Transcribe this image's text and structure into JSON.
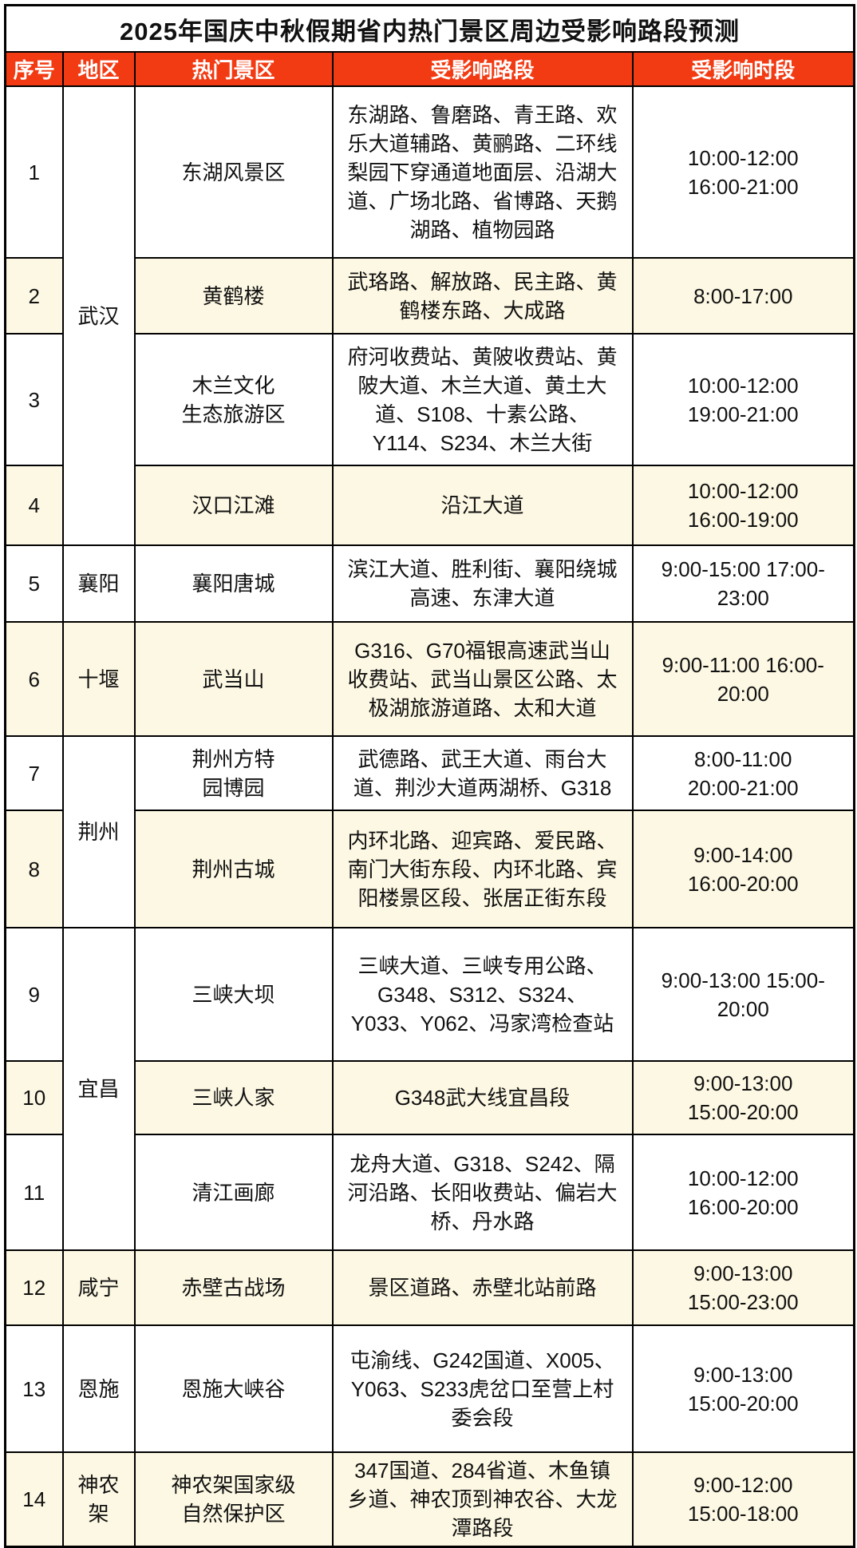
{
  "title": "2025年国庆中秋假期省内热门景区周边受影响路段预测",
  "columns": [
    "序号",
    "地区",
    "热门景区",
    "受影响路段",
    "受影响时段"
  ],
  "colors": {
    "header_bg": "#f33b13",
    "header_text": "#ffffff",
    "stripe_bg": "#fdf8e3",
    "border_color": "#000000"
  },
  "rows": [
    {
      "no": "1",
      "region": "武汉",
      "region_rowspan": 4,
      "scenic": "东湖风景区",
      "roads": "东湖路、鲁磨路、青王路、欢乐大道辅路、黄鹂路、二环线梨园下穿通道地面层、沿湖大道、广场北路、省博路、天鹅湖路、植物园路",
      "time": "10:00-12:00\n16:00-21:00"
    },
    {
      "no": "2",
      "scenic": "黄鹤楼",
      "roads": "武珞路、解放路、民主路、黄鹤楼东路、大成路",
      "time": "8:00-17:00"
    },
    {
      "no": "3",
      "scenic": "木兰文化\n生态旅游区",
      "roads": "府河收费站、黄陂收费站、黄陂大道、木兰大道、黄土大道、S108、十素公路、Y114、S234、木兰大街",
      "time": "10:00-12:00\n19:00-21:00"
    },
    {
      "no": "4",
      "scenic": "汉口江滩",
      "roads": "沿江大道",
      "time": "10:00-12:00\n16:00-19:00"
    },
    {
      "no": "5",
      "region": "襄阳",
      "region_rowspan": 1,
      "scenic": "襄阳唐城",
      "roads": "滨江大道、胜利街、襄阳绕城高速、东津大道",
      "time": "9:00-15:00 17:00-23:00"
    },
    {
      "no": "6",
      "region": "十堰",
      "region_rowspan": 1,
      "scenic": "武当山",
      "roads": "G316、G70福银高速武当山收费站、武当山景区公路、太极湖旅游道路、太和大道",
      "time": "9:00-11:00 16:00-20:00"
    },
    {
      "no": "7",
      "region": "荆州",
      "region_rowspan": 2,
      "scenic": "荆州方特\n园博园",
      "roads": "武德路、武王大道、雨台大道、荆沙大道两湖桥、G318",
      "time": "8:00-11:00\n20:00-21:00"
    },
    {
      "no": "8",
      "scenic": "荆州古城",
      "roads": "内环北路、迎宾路、爱民路、南门大街东段、内环北路、宾阳楼景区段、张居正街东段",
      "time": "9:00-14:00\n16:00-20:00"
    },
    {
      "no": "9",
      "region": "宜昌",
      "region_rowspan": 3,
      "scenic": "三峡大坝",
      "roads": "三峡大道、三峡专用公路、G348、S312、S324、Y033、Y062、冯家湾检查站",
      "time": "9:00-13:00 15:00-20:00"
    },
    {
      "no": "10",
      "scenic": "三峡人家",
      "roads": "G348武大线宜昌段",
      "time": "9:00-13:00\n15:00-20:00"
    },
    {
      "no": "11",
      "scenic": "清江画廊",
      "roads": "龙舟大道、G318、S242、隔河沿路、长阳收费站、偏岩大桥、丹水路",
      "time": "10:00-12:00\n16:00-20:00"
    },
    {
      "no": "12",
      "region": "咸宁",
      "region_rowspan": 1,
      "scenic": "赤壁古战场",
      "roads": "景区道路、赤壁北站前路",
      "time": "9:00-13:00\n15:00-23:00"
    },
    {
      "no": "13",
      "region": "恩施",
      "region_rowspan": 1,
      "scenic": "恩施大峡谷",
      "roads": "屯渝线、G242国道、X005、Y063、S233虎岔口至营上村委会段",
      "time": "9:00-13:00\n15:00-20:00"
    },
    {
      "no": "14",
      "region": "神农架",
      "region_rowspan": 1,
      "scenic": "神农架国家级\n自然保护区",
      "roads": "347国道、284省道、木鱼镇乡道、神农顶到神农谷、大龙潭路段",
      "time": "9:00-12:00\n15:00-18:00"
    }
  ]
}
